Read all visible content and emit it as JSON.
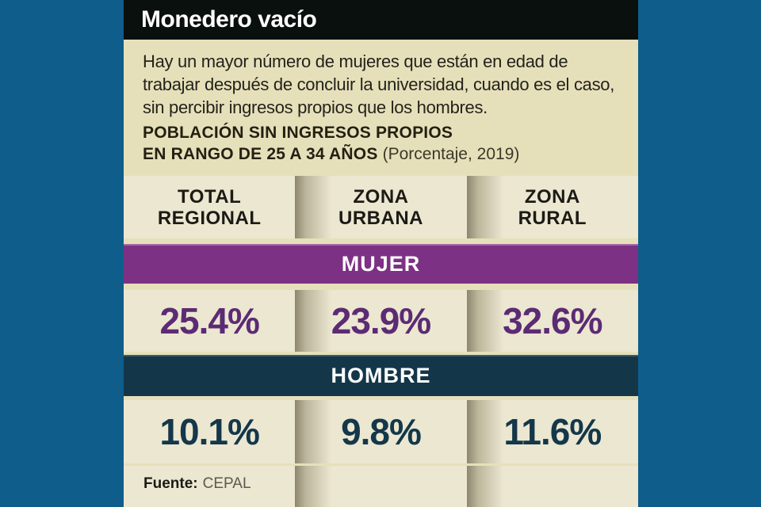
{
  "page": {
    "background_color": "#0f5d8b",
    "content_background": "#e6e0ba"
  },
  "header": {
    "title": "Monedero vacío",
    "background_color": "#0a100e"
  },
  "intro": {
    "text": "Hay un mayor número de mujeres que están en edad de trabajar después de concluir la universidad, cuando es el caso, sin percibir ingresos propios que los hombres."
  },
  "subtitle": {
    "line1": "POBLACIÓN SIN INGRESOS PROPIOS",
    "line2": "EN RANGO DE 25 A 34 AÑOS",
    "note": "(Porcentaje, 2019)"
  },
  "columns": [
    {
      "line1": "TOTAL",
      "line2": "REGIONAL"
    },
    {
      "line1": "ZONA",
      "line2": "URBANA"
    },
    {
      "line1": "ZONA",
      "line2": "RURAL"
    }
  ],
  "chart_data": {
    "type": "table",
    "title": "POBLACIÓN SIN INGRESOS PROPIOS EN RANGO DE 25 A 34 AÑOS",
    "unit": "Porcentaje, 2019",
    "categories": [
      "TOTAL REGIONAL",
      "ZONA URBANA",
      "ZONA RURAL"
    ],
    "series": [
      {
        "name": "MUJER",
        "color": "#7d3184",
        "text_color": "#5c2b74",
        "values": [
          25.4,
          23.9,
          32.6
        ],
        "labels": [
          "25.4%",
          "23.9%",
          "32.6%"
        ]
      },
      {
        "name": "HOMBRE",
        "color": "#133749",
        "text_color": "#14374a",
        "values": [
          10.1,
          9.8,
          11.6
        ],
        "labels": [
          "10.1%",
          "9.8%",
          "11.6%"
        ]
      }
    ],
    "source": "CEPAL",
    "legend_position": "inline-bands",
    "grid": false
  },
  "footer": {
    "label": "Fuente:",
    "value": "CEPAL"
  }
}
